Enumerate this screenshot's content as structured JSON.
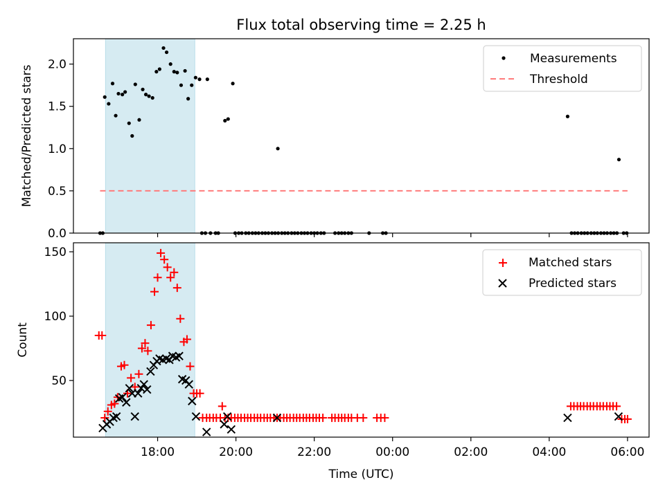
{
  "chart_data": [
    {
      "type": "scatter",
      "title": "Flux total observing time = 2.25 h",
      "xlabel": "",
      "ylabel": "Matched/Predicted stars",
      "x_unit": "hours since 00:00 UTC (>24 = next day)",
      "xlim": [
        15.85,
        30.55
      ],
      "ylim": [
        0,
        2.3
      ],
      "y_ticks": [
        0.0,
        0.5,
        1.0,
        1.5,
        2.0
      ],
      "y_tick_labels": [
        "0.0",
        "0.5",
        "1.0",
        "1.5",
        "2.0"
      ],
      "x_ticks": [
        18,
        20,
        22,
        24,
        26,
        28,
        30
      ],
      "shaded_span": {
        "x": [
          16.67,
          18.95
        ],
        "color": "#add8e6"
      },
      "threshold": {
        "y": 0.5,
        "x": [
          16.53,
          30.0
        ],
        "color": "#ff7b7b"
      },
      "legend": {
        "position": "top-right",
        "entries": [
          {
            "label": "Measurements",
            "marker": "dot",
            "color": "#000000"
          },
          {
            "label": "Threshold",
            "marker": "dashed-line",
            "color": "#ff7b7b"
          }
        ]
      },
      "series": [
        {
          "name": "Measurements",
          "color": "#000000",
          "points": [
            [
              16.53,
              0.0
            ],
            [
              16.6,
              0.0
            ],
            [
              16.65,
              1.61
            ],
            [
              16.75,
              1.53
            ],
            [
              16.85,
              1.77
            ],
            [
              16.93,
              1.39
            ],
            [
              17.0,
              1.65
            ],
            [
              17.1,
              1.64
            ],
            [
              17.17,
              1.67
            ],
            [
              17.27,
              1.3
            ],
            [
              17.35,
              1.15
            ],
            [
              17.43,
              1.76
            ],
            [
              17.53,
              1.34
            ],
            [
              17.62,
              1.7
            ],
            [
              17.7,
              1.64
            ],
            [
              17.78,
              1.62
            ],
            [
              17.87,
              1.6
            ],
            [
              17.97,
              1.91
            ],
            [
              18.05,
              1.94
            ],
            [
              18.15,
              2.19
            ],
            [
              18.23,
              2.14
            ],
            [
              18.33,
              2.0
            ],
            [
              18.42,
              1.91
            ],
            [
              18.5,
              1.9
            ],
            [
              18.6,
              1.75
            ],
            [
              18.7,
              1.92
            ],
            [
              18.78,
              1.59
            ],
            [
              18.87,
              1.75
            ],
            [
              18.97,
              1.84
            ],
            [
              19.07,
              1.82
            ],
            [
              19.13,
              0.0
            ],
            [
              19.22,
              0.0
            ],
            [
              19.35,
              0.0
            ],
            [
              19.48,
              0.0
            ],
            [
              19.55,
              0.0
            ],
            [
              19.27,
              1.82
            ],
            [
              19.72,
              1.33
            ],
            [
              19.8,
              1.35
            ],
            [
              19.92,
              1.77
            ],
            [
              19.98,
              0.0
            ],
            [
              20.07,
              0.0
            ],
            [
              20.15,
              0.0
            ],
            [
              20.25,
              0.0
            ],
            [
              20.33,
              0.0
            ],
            [
              20.42,
              0.0
            ],
            [
              20.5,
              0.0
            ],
            [
              20.58,
              0.0
            ],
            [
              20.67,
              0.0
            ],
            [
              20.75,
              0.0
            ],
            [
              20.83,
              0.0
            ],
            [
              20.92,
              0.0
            ],
            [
              21.0,
              0.0
            ],
            [
              21.08,
              0.0
            ],
            [
              21.17,
              0.0
            ],
            [
              21.25,
              0.0
            ],
            [
              21.33,
              0.0
            ],
            [
              21.42,
              0.0
            ],
            [
              21.5,
              0.0
            ],
            [
              21.58,
              0.0
            ],
            [
              21.67,
              0.0
            ],
            [
              21.75,
              0.0
            ],
            [
              21.83,
              0.0
            ],
            [
              21.92,
              0.0
            ],
            [
              22.0,
              0.0
            ],
            [
              22.08,
              0.0
            ],
            [
              22.17,
              0.0
            ],
            [
              22.25,
              0.0
            ],
            [
              22.53,
              0.0
            ],
            [
              22.62,
              0.0
            ],
            [
              22.7,
              0.0
            ],
            [
              22.78,
              0.0
            ],
            [
              22.87,
              0.0
            ],
            [
              22.95,
              0.0
            ],
            [
              23.4,
              0.0
            ],
            [
              23.75,
              0.0
            ],
            [
              23.83,
              0.0
            ],
            [
              21.07,
              1.0
            ],
            [
              28.47,
              1.38
            ],
            [
              28.57,
              0.0
            ],
            [
              28.65,
              0.0
            ],
            [
              28.73,
              0.0
            ],
            [
              28.82,
              0.0
            ],
            [
              28.9,
              0.0
            ],
            [
              28.98,
              0.0
            ],
            [
              29.07,
              0.0
            ],
            [
              29.15,
              0.0
            ],
            [
              29.23,
              0.0
            ],
            [
              29.32,
              0.0
            ],
            [
              29.4,
              0.0
            ],
            [
              29.48,
              0.0
            ],
            [
              29.57,
              0.0
            ],
            [
              29.65,
              0.0
            ],
            [
              29.73,
              0.0
            ],
            [
              29.78,
              0.87
            ],
            [
              29.9,
              0.0
            ],
            [
              29.98,
              0.0
            ]
          ]
        }
      ]
    },
    {
      "type": "scatter",
      "title": "",
      "xlabel": "Time (UTC)",
      "ylabel": "Count",
      "x_unit": "hours since 00:00 UTC (>24 = next day)",
      "xlim": [
        15.85,
        30.55
      ],
      "ylim": [
        6,
        157
      ],
      "y_ticks": [
        50,
        100,
        150
      ],
      "y_tick_labels": [
        "50",
        "100",
        "150"
      ],
      "x_ticks": [
        18,
        20,
        22,
        24,
        26,
        28,
        30
      ],
      "x_tick_labels": [
        "18:00",
        "20:00",
        "22:00",
        "00:00",
        "02:00",
        "04:00",
        "06:00"
      ],
      "shaded_span": {
        "x": [
          16.67,
          18.95
        ],
        "color": "#add8e6"
      },
      "legend": {
        "position": "top-right",
        "entries": [
          {
            "label": "Matched stars",
            "marker": "plus",
            "color": "#ff0000"
          },
          {
            "label": "Predicted stars",
            "marker": "x",
            "color": "#000000"
          }
        ]
      },
      "series": [
        {
          "name": "Matched stars",
          "marker": "plus",
          "color": "#ff0000",
          "points": [
            [
              16.5,
              85
            ],
            [
              16.58,
              85
            ],
            [
              16.65,
              21
            ],
            [
              16.73,
              26
            ],
            [
              16.82,
              31
            ],
            [
              16.9,
              32
            ],
            [
              16.98,
              37
            ],
            [
              17.07,
              61
            ],
            [
              17.15,
              62
            ],
            [
              17.23,
              40
            ],
            [
              17.32,
              52
            ],
            [
              17.42,
              45
            ],
            [
              17.52,
              55
            ],
            [
              17.6,
              75
            ],
            [
              17.68,
              79
            ],
            [
              17.75,
              73
            ],
            [
              17.83,
              93
            ],
            [
              17.92,
              119
            ],
            [
              18.0,
              130
            ],
            [
              18.08,
              149
            ],
            [
              18.17,
              144
            ],
            [
              18.25,
              138
            ],
            [
              18.33,
              130
            ],
            [
              18.42,
              134
            ],
            [
              18.5,
              122
            ],
            [
              18.58,
              98
            ],
            [
              18.67,
              80
            ],
            [
              18.75,
              82
            ],
            [
              18.83,
              61
            ],
            [
              18.92,
              40
            ],
            [
              19.0,
              40
            ],
            [
              19.08,
              40
            ],
            [
              19.15,
              21
            ],
            [
              19.25,
              21
            ],
            [
              19.33,
              21
            ],
            [
              19.42,
              21
            ],
            [
              19.5,
              21
            ],
            [
              19.6,
              21
            ],
            [
              19.65,
              30
            ],
            [
              19.72,
              21
            ],
            [
              19.8,
              21
            ],
            [
              19.88,
              21
            ],
            [
              19.97,
              21
            ],
            [
              20.05,
              21
            ],
            [
              20.13,
              21
            ],
            [
              20.22,
              21
            ],
            [
              20.3,
              21
            ],
            [
              20.38,
              21
            ],
            [
              20.47,
              21
            ],
            [
              20.55,
              21
            ],
            [
              20.63,
              21
            ],
            [
              20.72,
              21
            ],
            [
              20.8,
              21
            ],
            [
              20.88,
              21
            ],
            [
              20.97,
              21
            ],
            [
              21.05,
              21
            ],
            [
              21.13,
              21
            ],
            [
              21.22,
              21
            ],
            [
              21.3,
              21
            ],
            [
              21.38,
              21
            ],
            [
              21.47,
              21
            ],
            [
              21.55,
              21
            ],
            [
              21.63,
              21
            ],
            [
              21.72,
              21
            ],
            [
              21.8,
              21
            ],
            [
              21.88,
              21
            ],
            [
              21.97,
              21
            ],
            [
              22.05,
              21
            ],
            [
              22.13,
              21
            ],
            [
              22.22,
              21
            ],
            [
              22.45,
              21
            ],
            [
              22.53,
              21
            ],
            [
              22.62,
              21
            ],
            [
              22.7,
              21
            ],
            [
              22.78,
              21
            ],
            [
              22.87,
              21
            ],
            [
              22.95,
              21
            ],
            [
              23.1,
              21
            ],
            [
              23.25,
              21
            ],
            [
              23.6,
              21
            ],
            [
              23.7,
              21
            ],
            [
              23.8,
              21
            ],
            [
              28.55,
              30
            ],
            [
              28.63,
              30
            ],
            [
              28.72,
              30
            ],
            [
              28.8,
              30
            ],
            [
              28.88,
              30
            ],
            [
              28.97,
              30
            ],
            [
              29.05,
              30
            ],
            [
              29.13,
              30
            ],
            [
              29.22,
              30
            ],
            [
              29.3,
              30
            ],
            [
              29.38,
              30
            ],
            [
              29.47,
              30
            ],
            [
              29.55,
              30
            ],
            [
              29.63,
              30
            ],
            [
              29.72,
              30
            ],
            [
              29.85,
              20
            ],
            [
              29.93,
              20
            ],
            [
              30.0,
              20
            ]
          ]
        },
        {
          "name": "Predicted stars",
          "marker": "x",
          "color": "#000000",
          "points": [
            [
              16.6,
              13
            ],
            [
              16.7,
              16
            ],
            [
              16.78,
              18
            ],
            [
              16.87,
              21
            ],
            [
              16.95,
              22
            ],
            [
              17.02,
              36
            ],
            [
              17.1,
              37
            ],
            [
              17.2,
              33
            ],
            [
              17.28,
              44
            ],
            [
              17.35,
              40
            ],
            [
              17.42,
              22
            ],
            [
              17.5,
              40
            ],
            [
              17.58,
              44
            ],
            [
              17.65,
              47
            ],
            [
              17.73,
              43
            ],
            [
              17.82,
              57
            ],
            [
              17.9,
              62
            ],
            [
              17.98,
              65
            ],
            [
              18.05,
              67
            ],
            [
              18.13,
              66
            ],
            [
              18.22,
              67
            ],
            [
              18.3,
              66
            ],
            [
              18.38,
              69
            ],
            [
              18.47,
              68
            ],
            [
              18.55,
              69
            ],
            [
              18.63,
              51
            ],
            [
              18.72,
              50
            ],
            [
              18.8,
              47
            ],
            [
              18.88,
              34
            ],
            [
              18.98,
              22
            ],
            [
              19.25,
              10
            ],
            [
              19.7,
              16
            ],
            [
              19.78,
              22
            ],
            [
              19.88,
              12
            ],
            [
              21.05,
              21
            ],
            [
              28.47,
              21
            ],
            [
              29.77,
              22
            ]
          ]
        }
      ]
    }
  ]
}
